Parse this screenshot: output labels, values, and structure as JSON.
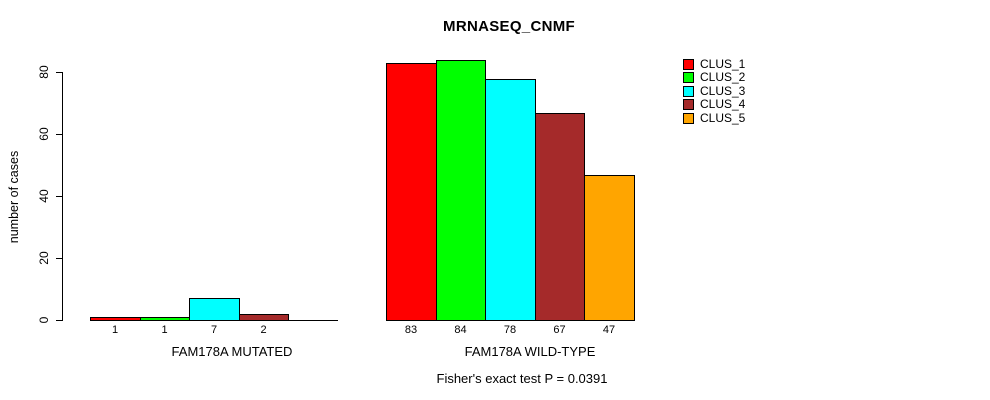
{
  "chart_data": {
    "type": "bar",
    "title": "MRNASEQ_CNMF",
    "ylabel": "number of cases",
    "ylim": [
      0,
      80
    ],
    "yticks": [
      0,
      20,
      40,
      60,
      80
    ],
    "grid": false,
    "legend_position": "top-right",
    "categories": [
      "FAM178A MUTATED",
      "FAM178A WILD-TYPE"
    ],
    "series": [
      {
        "name": "CLUS_1",
        "color": "#ff0000",
        "values": [
          1,
          83
        ]
      },
      {
        "name": "CLUS_2",
        "color": "#00ff00",
        "values": [
          1,
          84
        ]
      },
      {
        "name": "CLUS_3",
        "color": "#00ffff",
        "values": [
          7,
          78
        ]
      },
      {
        "name": "CLUS_4",
        "color": "#a52a2a",
        "values": [
          2,
          67
        ]
      },
      {
        "name": "CLUS_5",
        "color": "#ffa500",
        "values": [
          0,
          47
        ]
      }
    ],
    "bar_label_rule": "value shown under each bar, hidden when 0",
    "annotation": "Fisher's exact test P = 0.0391"
  }
}
